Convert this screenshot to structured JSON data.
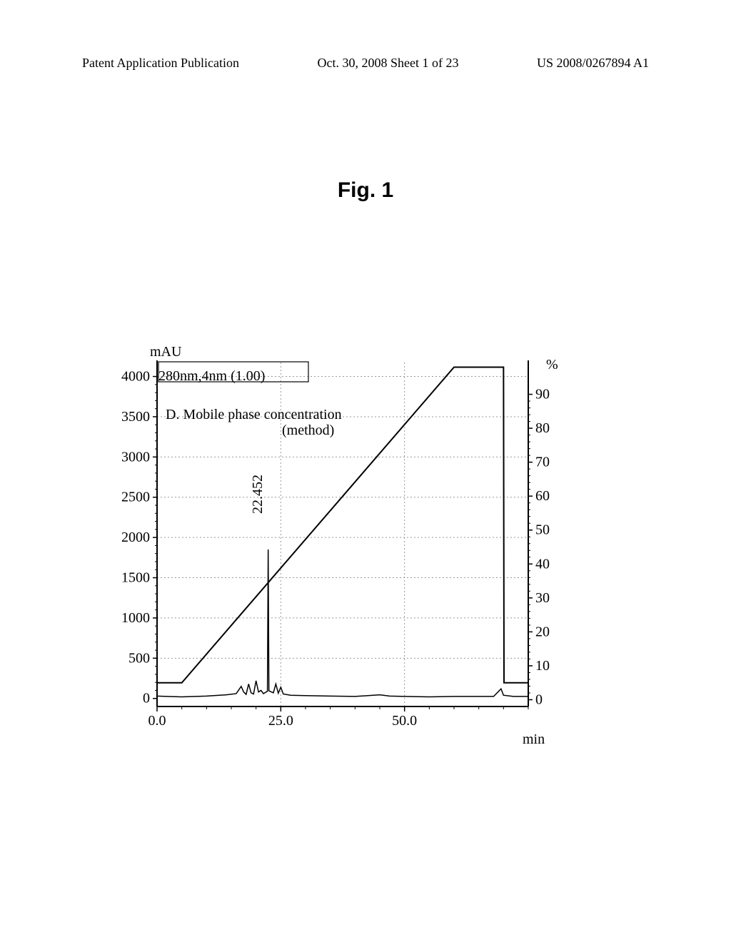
{
  "header": {
    "left": "Patent Application Publication",
    "center": "Oct. 30, 2008  Sheet 1 of 23",
    "right": "US 2008/0267894 A1"
  },
  "figure_title": "Fig. 1",
  "chart": {
    "type": "line",
    "left_axis": {
      "label": "mAU",
      "ticks": [
        0,
        500,
        1000,
        1500,
        2000,
        2500,
        3000,
        3500,
        4000
      ],
      "ylim": [
        -100,
        4200
      ]
    },
    "right_axis": {
      "label": "%",
      "ticks": [
        0,
        10,
        20,
        30,
        40,
        50,
        60,
        70,
        80,
        90
      ],
      "ylim": [
        -2,
        100
      ]
    },
    "x_axis": {
      "label": "min",
      "ticks": [
        0.0,
        25.0,
        50.0
      ],
      "xlim": [
        0,
        75
      ]
    },
    "annotations": {
      "detector": "280nm,4nm (1.00)",
      "gradient_line1": "D. Mobile phase concentration",
      "gradient_line2": "(method)",
      "peak_rt": "22.452"
    },
    "gradient_series": [
      {
        "x": 0,
        "y": 5
      },
      {
        "x": 5,
        "y": 5
      },
      {
        "x": 60,
        "y": 98
      },
      {
        "x": 70,
        "y": 98
      },
      {
        "x": 70.1,
        "y": 5
      },
      {
        "x": 75,
        "y": 5
      }
    ],
    "chromatogram_series": [
      {
        "x": 0,
        "y": 30
      },
      {
        "x": 2,
        "y": 25
      },
      {
        "x": 5,
        "y": 20
      },
      {
        "x": 10,
        "y": 30
      },
      {
        "x": 14,
        "y": 45
      },
      {
        "x": 16,
        "y": 60
      },
      {
        "x": 17,
        "y": 150
      },
      {
        "x": 17.5,
        "y": 80
      },
      {
        "x": 18,
        "y": 50
      },
      {
        "x": 18.5,
        "y": 180
      },
      {
        "x": 19,
        "y": 70
      },
      {
        "x": 19.5,
        "y": 55
      },
      {
        "x": 20,
        "y": 220
      },
      {
        "x": 20.5,
        "y": 80
      },
      {
        "x": 21,
        "y": 100
      },
      {
        "x": 21.5,
        "y": 60
      },
      {
        "x": 22.3,
        "y": 90
      },
      {
        "x": 22.452,
        "y": 1850
      },
      {
        "x": 22.6,
        "y": 95
      },
      {
        "x": 23.5,
        "y": 70
      },
      {
        "x": 24,
        "y": 180
      },
      {
        "x": 24.5,
        "y": 65
      },
      {
        "x": 25,
        "y": 140
      },
      {
        "x": 25.5,
        "y": 55
      },
      {
        "x": 27,
        "y": 40
      },
      {
        "x": 30,
        "y": 35
      },
      {
        "x": 35,
        "y": 30
      },
      {
        "x": 40,
        "y": 25
      },
      {
        "x": 45,
        "y": 45
      },
      {
        "x": 47,
        "y": 30
      },
      {
        "x": 50,
        "y": 25
      },
      {
        "x": 55,
        "y": 20
      },
      {
        "x": 60,
        "y": 25
      },
      {
        "x": 65,
        "y": 25
      },
      {
        "x": 68,
        "y": 25
      },
      {
        "x": 69.5,
        "y": 120
      },
      {
        "x": 70,
        "y": 40
      },
      {
        "x": 72,
        "y": 25
      },
      {
        "x": 75,
        "y": 25
      }
    ],
    "colors": {
      "background": "#ffffff",
      "axis": "#000000",
      "grid": "#999999",
      "grid_dash": "2,3",
      "gradient_line": "#000000",
      "chromatogram_line": "#000000"
    },
    "line_widths": {
      "axis": 2,
      "grid": 1,
      "gradient": 2,
      "chromatogram": 1.5
    },
    "font": {
      "tick_size": 20,
      "label_size": 20
    }
  }
}
